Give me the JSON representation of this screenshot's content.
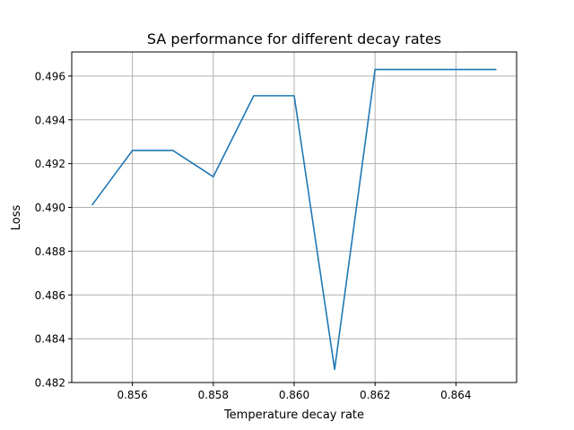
{
  "chart_data": {
    "type": "line",
    "title": "SA performance for different decay rates",
    "xlabel": "Temperature decay rate",
    "ylabel": "Loss",
    "xlim": [
      0.8545,
      0.8655
    ],
    "ylim": [
      0.482,
      0.4971
    ],
    "xticks": [
      0.856,
      0.858,
      0.86,
      0.862,
      0.864
    ],
    "xtick_labels": [
      "0.856",
      "0.858",
      "0.860",
      "0.862",
      "0.864"
    ],
    "yticks": [
      0.482,
      0.484,
      0.486,
      0.488,
      0.49,
      0.492,
      0.494,
      0.496
    ],
    "ytick_labels": [
      "0.482",
      "0.484",
      "0.486",
      "0.488",
      "0.490",
      "0.492",
      "0.494",
      "0.496"
    ],
    "grid": true,
    "series": [
      {
        "color": "#1f77b4",
        "x": [
          0.855,
          0.856,
          0.857,
          0.858,
          0.859,
          0.86,
          0.861,
          0.862,
          0.863,
          0.864,
          0.865
        ],
        "values": [
          0.4901,
          0.4926,
          0.4926,
          0.4914,
          0.4951,
          0.4951,
          0.4826,
          0.4963,
          0.4963,
          0.4963,
          0.4963
        ]
      }
    ]
  }
}
